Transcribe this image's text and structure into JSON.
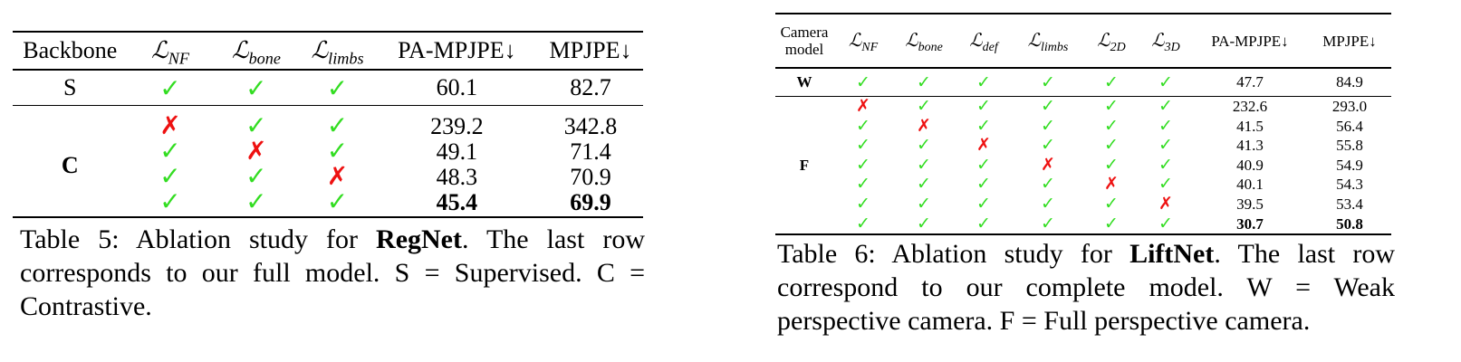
{
  "table5": {
    "headers": {
      "backbone": "Backbone",
      "l_nf": {
        "sym": "ℒ",
        "sub": "NF"
      },
      "l_bone": {
        "sym": "ℒ",
        "sub": "bone"
      },
      "l_limbs": {
        "sym": "ℒ",
        "sub": "limbs"
      },
      "pa_mpjpe": "PA-MPJPE↓",
      "mpjpe": "MPJPE↓"
    },
    "rows": [
      {
        "backbone": "S",
        "l_nf": "✓",
        "l_bone": "✓",
        "l_limbs": "✓",
        "pa_mpjpe": "60.1",
        "mpjpe": "82.7"
      },
      {
        "backbone": "C",
        "l_nf": "✗",
        "l_bone": "✓",
        "l_limbs": "✓",
        "pa_mpjpe": "239.2",
        "mpjpe": "342.8"
      },
      {
        "l_nf": "✓",
        "l_bone": "✗",
        "l_limbs": "✓",
        "pa_mpjpe": "49.1",
        "mpjpe": "71.4"
      },
      {
        "l_nf": "✓",
        "l_bone": "✓",
        "l_limbs": "✗",
        "pa_mpjpe": "48.3",
        "mpjpe": "70.9"
      },
      {
        "l_nf": "✓",
        "l_bone": "✓",
        "l_limbs": "✓",
        "pa_mpjpe": "45.4",
        "mpjpe": "69.9"
      }
    ],
    "caption": {
      "label": "Table 5:",
      "pre": " Ablation study for ",
      "bold": "RegNet",
      "post": ".  The last row corresponds to our full model. S = Supervised. C = Contrastive."
    }
  },
  "table6": {
    "headers": {
      "camera_line1": "Camera",
      "camera_line2": "model",
      "l_nf": {
        "sym": "ℒ",
        "sub": "NF"
      },
      "l_bone": {
        "sym": "ℒ",
        "sub": "bone"
      },
      "l_def": {
        "sym": "ℒ",
        "sub": "def"
      },
      "l_limbs": {
        "sym": "ℒ",
        "sub": "limbs"
      },
      "l_2d": {
        "sym": "ℒ",
        "sub": "2D"
      },
      "l_3d": {
        "sym": "ℒ",
        "sub": "3D"
      },
      "pa_mpjpe": "PA-MPJPE↓",
      "mpjpe": "MPJPE↓"
    },
    "rows": [
      {
        "camera": "W",
        "marks": [
          "✓",
          "✓",
          "✓",
          "✓",
          "✓",
          "✓"
        ],
        "pa_mpjpe": "47.7",
        "mpjpe": "84.9"
      },
      {
        "camera": "F",
        "marks": [
          "✗",
          "✓",
          "✓",
          "✓",
          "✓",
          "✓"
        ],
        "pa_mpjpe": "232.6",
        "mpjpe": "293.0"
      },
      {
        "marks": [
          "✓",
          "✗",
          "✓",
          "✓",
          "✓",
          "✓"
        ],
        "pa_mpjpe": "41.5",
        "mpjpe": "56.4"
      },
      {
        "marks": [
          "✓",
          "✓",
          "✗",
          "✓",
          "✓",
          "✓"
        ],
        "pa_mpjpe": "41.3",
        "mpjpe": "55.8"
      },
      {
        "marks": [
          "✓",
          "✓",
          "✓",
          "✗",
          "✓",
          "✓"
        ],
        "pa_mpjpe": "40.9",
        "mpjpe": "54.9"
      },
      {
        "marks": [
          "✓",
          "✓",
          "✓",
          "✓",
          "✗",
          "✓"
        ],
        "pa_mpjpe": "40.1",
        "mpjpe": "54.3"
      },
      {
        "marks": [
          "✓",
          "✓",
          "✓",
          "✓",
          "✓",
          "✗"
        ],
        "pa_mpjpe": "39.5",
        "mpjpe": "53.4"
      },
      {
        "marks": [
          "✓",
          "✓",
          "✓",
          "✓",
          "✓",
          "✓"
        ],
        "pa_mpjpe": "30.7",
        "mpjpe": "50.8"
      }
    ],
    "caption": {
      "label": "Table 6:",
      "pre": " Ablation study for ",
      "bold": "LiftNet",
      "post": ".  The last row correspond to our complete model.  W = Weak perspective camera. F = Full perspective camera."
    }
  },
  "colors": {
    "check": "#33dd22",
    "cross": "#ee1111"
  }
}
